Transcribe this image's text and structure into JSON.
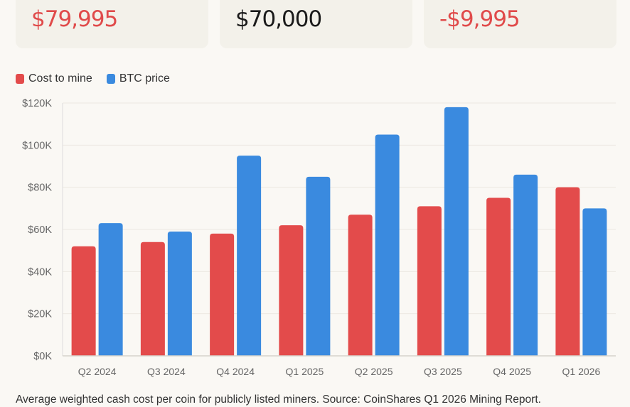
{
  "cards": [
    {
      "value": "$79,995",
      "color": "#e04a4a"
    },
    {
      "value": "$70,000",
      "color": "#1a1a1a"
    },
    {
      "value": "-$9,995",
      "color": "#e04a4a"
    }
  ],
  "chart_data": {
    "type": "bar",
    "categories": [
      "Q2 2024",
      "Q3 2024",
      "Q4 2024",
      "Q1 2025",
      "Q2 2025",
      "Q3 2025",
      "Q4 2025",
      "Q1 2026"
    ],
    "series": [
      {
        "name": "Cost to mine",
        "color": "#e34b4b",
        "values": [
          52000,
          54000,
          58000,
          62000,
          67000,
          71000,
          75000,
          79995
        ]
      },
      {
        "name": "BTC price",
        "color": "#3a8adf",
        "values": [
          63000,
          59000,
          95000,
          85000,
          105000,
          118000,
          86000,
          70000
        ]
      }
    ],
    "ylim": [
      0,
      120000
    ],
    "yticks": [
      {
        "v": 0,
        "label": "$0K"
      },
      {
        "v": 20000,
        "label": "$20K"
      },
      {
        "v": 40000,
        "label": "$40K"
      },
      {
        "v": 60000,
        "label": "$60K"
      },
      {
        "v": 80000,
        "label": "$80K"
      },
      {
        "v": 100000,
        "label": "$100K"
      },
      {
        "v": 120000,
        "label": "$120K"
      }
    ],
    "grid": true,
    "legend": "top-left"
  },
  "footnote": "Average weighted cash cost per coin for publicly listed miners. Source: CoinShares Q1 2026 Mining Report."
}
